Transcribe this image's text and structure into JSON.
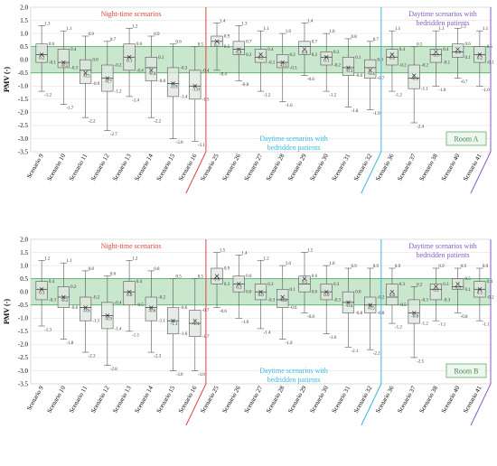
{
  "chart_data": [
    {
      "type": "box",
      "panel": "Room A",
      "room_label": "Room A",
      "ylabel": "PMV (-)",
      "ylim": [
        -3.5,
        2.0
      ],
      "ytick_step": 0.5,
      "comfort_band": [
        -0.5,
        0.5
      ],
      "grid": true,
      "annotations": {
        "night": "Night-time scenarios",
        "day_mid": "Daytime scenarios with bedridden patients",
        "day_right": "Daytime scenarios with bedridden patients"
      },
      "colors": {
        "night": "#e0443a",
        "day_mid": "#39b8e0",
        "day_right": "#8a5bc4",
        "band": "#bfe3c4",
        "box": "#dde5dd"
      },
      "categories": [
        "Scenario 9",
        "Scenario 10",
        "Scenario 11",
        "Scenario 12",
        "Scenario 13",
        "Scenario 14",
        "Scenario 15",
        "Scenario 16",
        "Scenario 25",
        "Scenario 26",
        "Scenario 27",
        "Scenario 28",
        "Scenario 29",
        "Scenario 30",
        "Scenario 31",
        "Scenario 32",
        "Scenario 36",
        "Scenario 37",
        "Scenario 38",
        "Scenario 40",
        "Scenario 41"
      ],
      "groups": [
        {
          "label": "Night-time scenarios",
          "start": 0,
          "end": 7
        },
        {
          "label": "Daytime scenarios with bedridden patients",
          "start": 8,
          "end": 15
        },
        {
          "label": "Daytime scenarios with bedridden patients",
          "start": 16,
          "end": 20
        }
      ],
      "boxes": [
        {
          "min": -1.2,
          "q1": -0.1,
          "median": 0.2,
          "q3": 0.6,
          "max": 1.3,
          "mean": 0.2
        },
        {
          "min": -1.7,
          "q1": -0.3,
          "median": -0.1,
          "q3": 0.4,
          "max": 1.1,
          "mean": -0.1
        },
        {
          "min": -2.2,
          "q1": -0.9,
          "median": -0.4,
          "q3": 0.0,
          "max": 0.9,
          "mean": -0.5
        },
        {
          "min": -2.7,
          "q1": -1.2,
          "median": -0.7,
          "q3": -0.2,
          "max": 0.7,
          "mean": -0.7
        },
        {
          "min": -1.4,
          "q1": -0.4,
          "median": 0.1,
          "q3": 0.6,
          "max": 1.2,
          "mean": 0.1
        },
        {
          "min": -2.2,
          "q1": -0.8,
          "median": -0.3,
          "q3": 0.1,
          "max": 0.9,
          "mean": -0.4
        },
        {
          "min": -3.0,
          "q1": -1.4,
          "median": -0.9,
          "q3": -0.3,
          "max": 0.6,
          "mean": -0.9
        },
        {
          "min": -3.1,
          "q1": -1.5,
          "median": -1.0,
          "q3": -0.4,
          "max": 0.5,
          "mean": -1.0
        },
        {
          "min": -0.4,
          "q1": 0.5,
          "median": 0.7,
          "q3": 0.9,
          "max": 1.4,
          "mean": 0.7
        },
        {
          "min": -0.8,
          "q1": 0.2,
          "median": 0.4,
          "q3": 0.7,
          "max": 1.3,
          "mean": 0.4
        },
        {
          "min": -1.2,
          "q1": -0.1,
          "median": 0.1,
          "q3": 0.4,
          "max": 1.1,
          "mean": 0.2
        },
        {
          "min": -1.6,
          "q1": -0.3,
          "median": -0.1,
          "q3": 0.2,
          "max": 1.0,
          "mean": -0.1
        },
        {
          "min": -0.6,
          "q1": 0.2,
          "median": 0.5,
          "q3": 0.7,
          "max": 1.4,
          "mean": 0.4
        },
        {
          "min": -1.2,
          "q1": -0.2,
          "median": 0.1,
          "q3": 0.3,
          "max": 1.0,
          "mean": 0.1
        },
        {
          "min": -1.8,
          "q1": -0.6,
          "median": -0.3,
          "q3": 0.1,
          "max": 0.8,
          "mean": -0.3
        },
        {
          "min": -1.9,
          "q1": -0.7,
          "median": -0.3,
          "q3": 0.0,
          "max": 0.7,
          "mean": -0.4
        },
        {
          "min": -1.2,
          "q1": -0.2,
          "median": 0.1,
          "q3": 0.4,
          "max": 1.1,
          "mean": 0.2
        },
        {
          "min": -2.4,
          "q1": -1.1,
          "median": -0.7,
          "q3": -0.2,
          "max": 0.5,
          "mean": -0.6
        },
        {
          "min": -1.0,
          "q1": -0.1,
          "median": 0.2,
          "q3": 0.4,
          "max": 1.1,
          "mean": 0.3
        },
        {
          "min": -0.7,
          "q1": 0.1,
          "median": 0.3,
          "q3": 0.6,
          "max": 1.2,
          "mean": 0.4
        },
        {
          "min": -1.0,
          "q1": -0.1,
          "median": 0.2,
          "q3": 0.5,
          "max": 1.1,
          "mean": 0.2
        }
      ]
    },
    {
      "type": "box",
      "panel": "Room B",
      "room_label": "Room B",
      "ylabel": "PMV (-)",
      "ylim": [
        -3.5,
        2.0
      ],
      "ytick_step": 0.5,
      "comfort_band": [
        -0.5,
        0.5
      ],
      "grid": true,
      "annotations": {
        "night": "Night-time scenarios",
        "day_mid": "Daytime scenarios with bedridden patients",
        "day_right": "Daytime scenarios with bedridden patients"
      },
      "colors": {
        "night": "#e0443a",
        "day_mid": "#39b8e0",
        "day_right": "#8a5bc4",
        "band": "#bfe3c4",
        "box": "#dde5dd"
      },
      "categories": [
        "Scenario 9",
        "Scenario 10",
        "Scenario 11",
        "Scenario 12",
        "Scenario 13",
        "Scenario 14",
        "Scenario 15",
        "Scenario 16",
        "Scenario 25",
        "Scenario 26",
        "Scenario 27",
        "Scenario 28",
        "Scenario 29",
        "Scenario 30",
        "Scenario 31",
        "Scenario 32",
        "Scenario 36",
        "Scenario 37",
        "Scenario 38",
        "Scenario 40",
        "Scenario 41"
      ],
      "groups": [
        {
          "label": "Night-time scenarios",
          "start": 0,
          "end": 7
        },
        {
          "label": "Daytime scenarios with bedridden patients",
          "start": 8,
          "end": 15
        },
        {
          "label": "Daytime scenarios with bedridden patients",
          "start": 16,
          "end": 20
        }
      ],
      "boxes": [
        {
          "min": -1.3,
          "q1": -0.3,
          "median": 0.1,
          "q3": 0.4,
          "max": 1.2,
          "mean": 0.1
        },
        {
          "min": -1.8,
          "q1": -0.6,
          "median": -0.2,
          "q3": 0.2,
          "max": 1.1,
          "mean": -0.2
        },
        {
          "min": -2.3,
          "q1": -1.1,
          "median": -0.6,
          "q3": -0.2,
          "max": 0.8,
          "mean": -0.6
        },
        {
          "min": -2.8,
          "q1": -1.4,
          "median": -0.9,
          "q3": -0.4,
          "max": 0.6,
          "mean": -0.9
        },
        {
          "min": -1.5,
          "q1": -0.5,
          "median": 0.0,
          "q3": 0.4,
          "max": 1.2,
          "mean": 0.0
        },
        {
          "min": -2.3,
          "q1": -1.1,
          "median": -0.6,
          "q3": -0.2,
          "max": 0.8,
          "mean": -0.6
        },
        {
          "min": -3.0,
          "q1": -1.6,
          "median": -1.1,
          "q3": -0.6,
          "max": 0.5,
          "mean": -1.1
        },
        {
          "min": -3.0,
          "q1": -1.7,
          "median": -1.2,
          "q3": -0.7,
          "max": 0.5,
          "mean": -1.1
        },
        {
          "min": -0.6,
          "q1": 0.3,
          "median": 0.5,
          "q3": 0.9,
          "max": 1.5,
          "mean": 0.6
        },
        {
          "min": -1.0,
          "q1": 0.0,
          "median": 0.3,
          "q3": 0.6,
          "max": 1.4,
          "mean": 0.3
        },
        {
          "min": -1.4,
          "q1": -0.3,
          "median": 0.0,
          "q3": 0.3,
          "max": 1.2,
          "mean": 0.0
        },
        {
          "min": -1.8,
          "q1": -0.6,
          "median": -0.3,
          "q3": 0.1,
          "max": 1.0,
          "mean": -0.2
        },
        {
          "min": -0.8,
          "q1": 0.0,
          "median": 0.3,
          "q3": 0.6,
          "max": 1.5,
          "mean": 0.5
        },
        {
          "min": -1.6,
          "q1": -0.3,
          "median": 0.0,
          "q3": 0.3,
          "max": 1.0,
          "mean": 0.0
        },
        {
          "min": -2.1,
          "q1": -0.8,
          "median": -0.4,
          "q3": 0.0,
          "max": 0.9,
          "mean": -0.4
        },
        {
          "min": -2.2,
          "q1": -0.8,
          "median": -0.5,
          "q3": -0.2,
          "max": 0.9,
          "mean": -0.5
        },
        {
          "min": -1.2,
          "q1": -0.5,
          "median": -0.2,
          "q3": 0.3,
          "max": 0.9,
          "mean": 0.0
        },
        {
          "min": -2.5,
          "q1": -1.2,
          "median": -0.8,
          "q3": -0.3,
          "max": 0.2,
          "mean": -0.8
        },
        {
          "min": -1.1,
          "q1": -0.3,
          "median": 0.1,
          "q3": 0.3,
          "max": 0.9,
          "mean": 0.2
        },
        {
          "min": -0.8,
          "q1": 0.1,
          "median": 0.2,
          "q3": 0.5,
          "max": 0.9,
          "mean": 0.3
        },
        {
          "min": -1.1,
          "q1": -0.2,
          "median": 0.1,
          "q3": 0.4,
          "max": 0.9,
          "mean": 0.1
        }
      ]
    }
  ]
}
